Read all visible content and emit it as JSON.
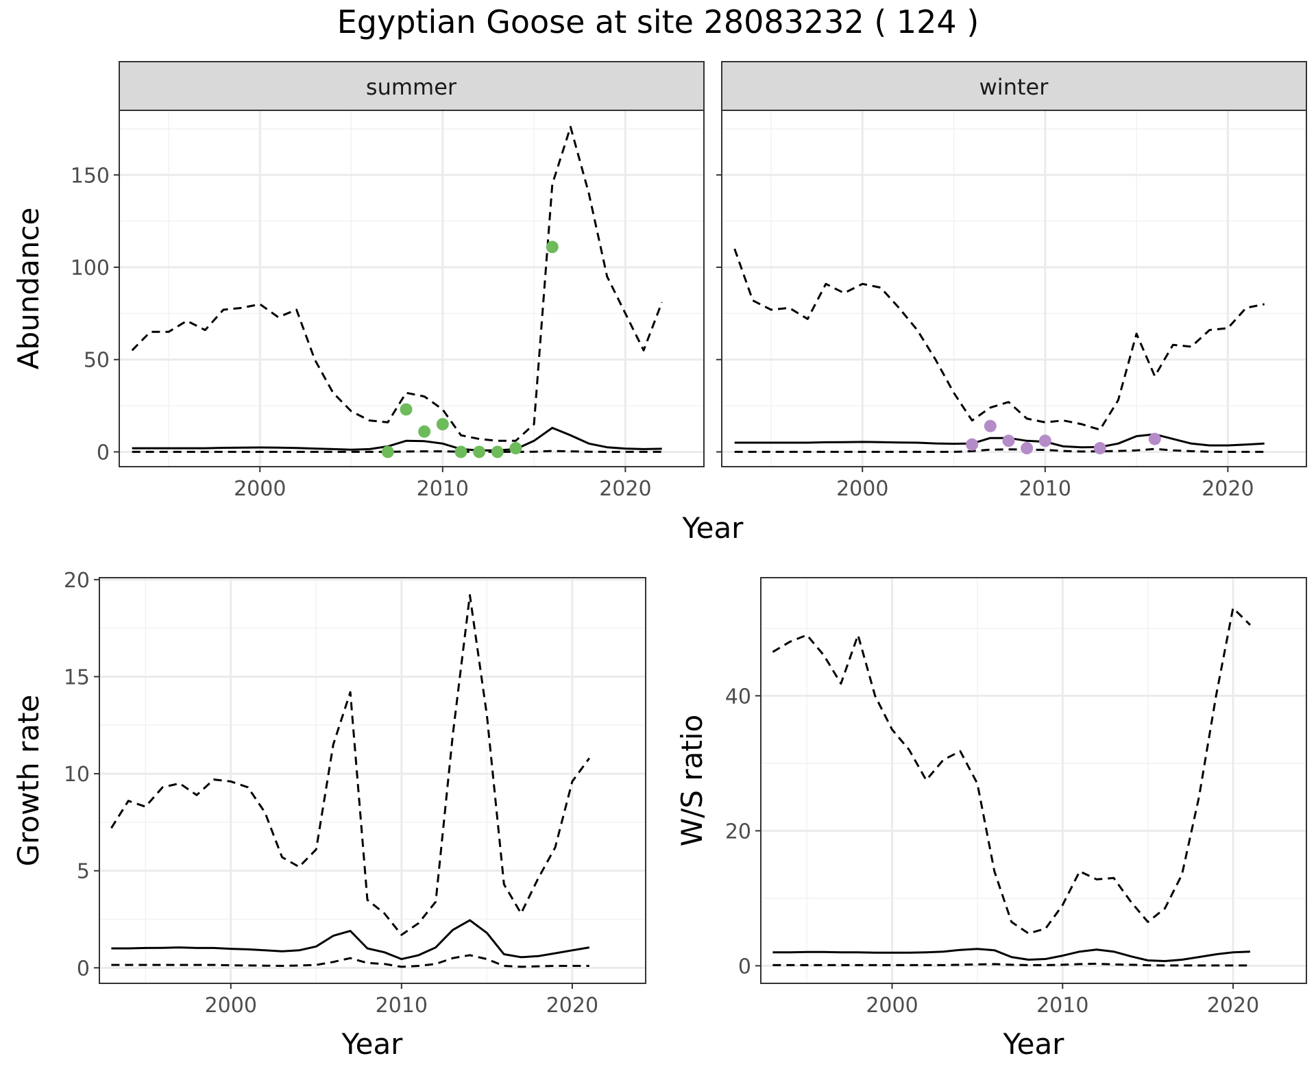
{
  "figure": {
    "title": "Egyptian Goose at site 28083232 ( 124 )"
  },
  "colors": {
    "summer_points": "#6dbb5a",
    "winter_points": "#b48cc8",
    "lines": "#000000"
  },
  "chart_data": [
    {
      "id": "abundance",
      "type": "line",
      "facets": [
        "summer",
        "winter"
      ],
      "xlabel": "Year",
      "ylabel": "Abundance",
      "xlim": [
        1992.3,
        2024.3
      ],
      "ylim": [
        -8,
        185
      ],
      "xticks": [
        2000,
        2010,
        2020
      ],
      "yticks": [
        0,
        50,
        100,
        150
      ],
      "x": [
        1993,
        1994,
        1995,
        1996,
        1997,
        1998,
        1999,
        2000,
        2001,
        2002,
        2003,
        2004,
        2005,
        2006,
        2007,
        2008,
        2009,
        2010,
        2011,
        2012,
        2013,
        2014,
        2015,
        2016,
        2017,
        2018,
        2019,
        2020,
        2021,
        2022
      ],
      "panels": [
        {
          "facet": "summer",
          "median": [
            2,
            2,
            2,
            2,
            2,
            2.2,
            2.3,
            2.4,
            2.3,
            2.1,
            1.8,
            1.5,
            1.2,
            1.5,
            3,
            6,
            5.8,
            4.5,
            1.5,
            0.8,
            0.8,
            1.5,
            6,
            13,
            9,
            4.5,
            2.5,
            1.8,
            1.5,
            1.7
          ],
          "upper": [
            55,
            65,
            65,
            71,
            66,
            77,
            78,
            80,
            73,
            77,
            50,
            32,
            22,
            17,
            16,
            32,
            30,
            23,
            9,
            7,
            6,
            6,
            15,
            145,
            176,
            140,
            95,
            75,
            55,
            81
          ],
          "lower": [
            0,
            0,
            0,
            0,
            0,
            0,
            0,
            0,
            0,
            0,
            0,
            0,
            0,
            0,
            0,
            0.2,
            0.3,
            0.3,
            0.1,
            0,
            0,
            0,
            0.1,
            0.5,
            0.3,
            0.1,
            0,
            0,
            0,
            0
          ],
          "points": [
            {
              "x": 2007,
              "y": 0
            },
            {
              "x": 2008,
              "y": 23
            },
            {
              "x": 2009,
              "y": 11
            },
            {
              "x": 2010,
              "y": 15
            },
            {
              "x": 2011,
              "y": 0
            },
            {
              "x": 2012,
              "y": 0
            },
            {
              "x": 2013,
              "y": 0
            },
            {
              "x": 2014,
              "y": 2
            },
            {
              "x": 2016,
              "y": 111
            }
          ]
        },
        {
          "facet": "winter",
          "median": [
            5,
            5,
            5,
            5,
            5,
            5.2,
            5.3,
            5.4,
            5.3,
            5.1,
            5,
            4.6,
            4.4,
            4.5,
            7.5,
            7.5,
            6,
            5.5,
            3,
            2.5,
            2.6,
            4.5,
            8.5,
            9.5,
            7,
            4.5,
            3.5,
            3.5,
            4,
            4.5
          ],
          "upper": [
            110,
            82,
            77,
            78,
            72,
            91,
            86,
            91,
            89,
            78,
            66,
            50,
            32,
            17,
            24,
            27,
            18,
            16,
            17,
            15,
            12,
            28,
            64,
            41,
            58,
            57,
            66,
            67,
            78,
            80
          ],
          "lower": [
            0,
            0,
            0,
            0,
            0,
            0,
            0,
            0,
            0,
            0,
            0,
            0,
            0,
            0.4,
            1.2,
            1.4,
            1.2,
            1.1,
            0.5,
            0.2,
            0.3,
            0.5,
            0.8,
            1.6,
            0.8,
            0.4,
            0.1,
            0,
            0,
            0
          ],
          "points": [
            {
              "x": 2006,
              "y": 4
            },
            {
              "x": 2007,
              "y": 14
            },
            {
              "x": 2008,
              "y": 6
            },
            {
              "x": 2009,
              "y": 2
            },
            {
              "x": 2010,
              "y": 6
            },
            {
              "x": 2013,
              "y": 2
            },
            {
              "x": 2016,
              "y": 7
            }
          ]
        }
      ]
    },
    {
      "id": "growth",
      "type": "line",
      "xlabel": "Year",
      "ylabel": "Growth rate",
      "xlim": [
        1992.3,
        2024.3
      ],
      "ylim": [
        -0.8,
        20.1
      ],
      "xticks": [
        2000,
        2010,
        2020
      ],
      "yticks": [
        0,
        5,
        10,
        15,
        20
      ],
      "x": [
        1993,
        1994,
        1995,
        1996,
        1997,
        1998,
        1999,
        2000,
        2001,
        2002,
        2003,
        2004,
        2005,
        2006,
        2007,
        2008,
        2009,
        2010,
        2011,
        2012,
        2013,
        2014,
        2015,
        2016,
        2017,
        2018,
        2019,
        2020,
        2021
      ],
      "median": [
        1,
        1,
        1.02,
        1.03,
        1.05,
        1.02,
        1.02,
        0.98,
        0.95,
        0.9,
        0.85,
        0.9,
        1.1,
        1.65,
        1.9,
        1.0,
        0.8,
        0.45,
        0.65,
        1.05,
        1.95,
        2.45,
        1.8,
        0.7,
        0.55,
        0.6,
        0.75,
        0.9,
        1.05
      ],
      "upper": [
        7.2,
        8.6,
        8.3,
        9.3,
        9.5,
        8.9,
        9.7,
        9.6,
        9.3,
        8.0,
        5.7,
        5.2,
        6.1,
        11.5,
        14.2,
        3.5,
        2.8,
        1.7,
        2.3,
        3.4,
        12.0,
        19.2,
        13.0,
        4.3,
        2.8,
        4.6,
        6.2,
        9.6,
        10.8
      ],
      "lower": [
        0.15,
        0.15,
        0.15,
        0.15,
        0.15,
        0.15,
        0.15,
        0.13,
        0.12,
        0.11,
        0.1,
        0.12,
        0.15,
        0.3,
        0.5,
        0.25,
        0.2,
        0.05,
        0.1,
        0.2,
        0.5,
        0.65,
        0.45,
        0.1,
        0.05,
        0.08,
        0.1,
        0.1,
        0.1
      ]
    },
    {
      "id": "ws_ratio",
      "type": "line",
      "xlabel": "Year",
      "ylabel": "W/S ratio",
      "xlim": [
        1992.3,
        2024.3
      ],
      "ylim": [
        -2.6,
        57.5
      ],
      "xticks": [
        2000,
        2010,
        2020
      ],
      "yticks": [
        0,
        20,
        40
      ],
      "x": [
        1993,
        1994,
        1995,
        1996,
        1997,
        1998,
        1999,
        2000,
        2001,
        2002,
        2003,
        2004,
        2005,
        2006,
        2007,
        2008,
        2009,
        2010,
        2011,
        2012,
        2013,
        2014,
        2015,
        2016,
        2017,
        2018,
        2019,
        2020,
        2021
      ],
      "median": [
        2,
        2,
        2.05,
        2.05,
        2,
        2,
        1.95,
        1.95,
        1.95,
        2,
        2.1,
        2.35,
        2.5,
        2.3,
        1.3,
        0.9,
        1.0,
        1.5,
        2.1,
        2.4,
        2.1,
        1.4,
        0.8,
        0.7,
        0.9,
        1.3,
        1.7,
        2.0,
        2.1
      ],
      "upper": [
        46.5,
        48,
        49,
        46,
        41.8,
        49,
        40,
        35,
        32,
        27.5,
        30.5,
        31.8,
        27,
        14,
        6.5,
        4.8,
        5.5,
        9,
        14,
        12.8,
        13,
        9.5,
        6.5,
        8.5,
        13.5,
        25,
        40,
        53,
        50.5
      ],
      "lower": [
        0.1,
        0.1,
        0.1,
        0.1,
        0.1,
        0.1,
        0.1,
        0.1,
        0.1,
        0.1,
        0.1,
        0.15,
        0.2,
        0.25,
        0.15,
        0.1,
        0.1,
        0.15,
        0.25,
        0.3,
        0.2,
        0.15,
        0.08,
        0.05,
        0.05,
        0.05,
        0.05,
        0.05,
        0.05
      ]
    }
  ]
}
